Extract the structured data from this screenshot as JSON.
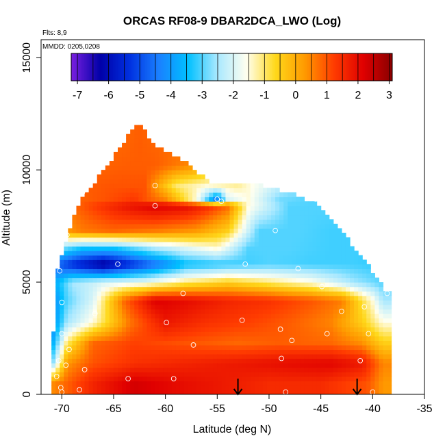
{
  "chart_data": {
    "type": "heatmap",
    "title": "ORCAS RF08-9 DBAR2DCA_LWO (Log)",
    "flights_label": "Flts: 8,9",
    "dates_label": "MMDD: 0205,0208",
    "xlabel": "Latitude (deg N)",
    "ylabel": "Altitude (m)",
    "xlim": [
      -72,
      -35
    ],
    "ylim": [
      0,
      15800
    ],
    "x_ticks": [
      -70,
      -65,
      -60,
      -55,
      -50,
      -45,
      -40,
      -35
    ],
    "y_ticks": [
      0,
      5000,
      10000,
      15000
    ],
    "colorbar": {
      "range": [
        -7.2,
        3.1
      ],
      "ticks": [
        -7,
        -6,
        -5,
        -4,
        -3,
        -2,
        -1,
        0,
        1,
        2,
        3
      ],
      "colors": [
        "#7a1fe0",
        "#0000a8",
        "#0030e0",
        "#1a80ff",
        "#00c0ff",
        "#a8e8ff",
        "#fffff0",
        "#ffd81a",
        "#ff9a00",
        "#ff3c00",
        "#e00000",
        "#8a0000"
      ]
    },
    "envelope_top": [
      [
        -71.0,
        1000
      ],
      [
        -70.5,
        5500
      ],
      [
        -69.5,
        7000
      ],
      [
        -68.5,
        8400
      ],
      [
        -67.2,
        9200
      ],
      [
        -66.0,
        10000
      ],
      [
        -64.5,
        10900
      ],
      [
        -63.0,
        11900
      ],
      [
        -62.3,
        11900
      ],
      [
        -61.0,
        11100
      ],
      [
        -58.5,
        10500
      ],
      [
        -55.5,
        9400
      ],
      [
        -53.5,
        9300
      ],
      [
        -50.5,
        9300
      ],
      [
        -48.0,
        9000
      ],
      [
        -45.5,
        8500
      ],
      [
        -43.0,
        7300
      ],
      [
        -41.0,
        6100
      ],
      [
        -39.0,
        4800
      ],
      [
        -38.5,
        4500
      ]
    ],
    "envelope_bottom": [
      [
        -71.0,
        0
      ],
      [
        -38.5,
        0
      ]
    ],
    "layers": [
      {
        "altitude_m": 500,
        "values": [
          [
            -71,
            0.4
          ],
          [
            -69,
            1.0
          ],
          [
            -67,
            1.6
          ],
          [
            -63,
            2.3
          ],
          [
            -59,
            2.0
          ],
          [
            -55,
            1.8
          ],
          [
            -50,
            1.5
          ],
          [
            -45,
            1.5
          ],
          [
            -40.5,
            1.0
          ],
          [
            -39,
            0.3
          ]
        ]
      },
      {
        "altitude_m": 1400,
        "values": [
          [
            -71,
            -3.0
          ],
          [
            -69.5,
            0.3
          ],
          [
            -67,
            1.0
          ],
          [
            -63,
            1.4
          ],
          [
            -58,
            1.6
          ],
          [
            -53,
            1.8
          ],
          [
            -48,
            2.0
          ],
          [
            -44,
            2.1
          ],
          [
            -41,
            1.8
          ],
          [
            -39,
            0.5
          ]
        ]
      },
      {
        "altitude_m": 2300,
        "values": [
          [
            -71,
            -4.0
          ],
          [
            -69.5,
            -1.0
          ],
          [
            -67,
            0.8
          ],
          [
            -63,
            1.2
          ],
          [
            -58,
            1.0
          ],
          [
            -53,
            0.8
          ],
          [
            -49,
            0.9
          ],
          [
            -44,
            0.8
          ],
          [
            -41,
            0.4
          ],
          [
            -39,
            -0.5
          ]
        ]
      },
      {
        "altitude_m": 3200,
        "values": [
          [
            -71,
            -4.5
          ],
          [
            -69.5,
            -2.5
          ],
          [
            -67,
            -1.5
          ],
          [
            -63.5,
            0.6
          ],
          [
            -60,
            1.8
          ],
          [
            -56,
            1.4
          ],
          [
            -52,
            1.2
          ],
          [
            -48,
            0.9
          ],
          [
            -44,
            0.5
          ],
          [
            -41,
            -0.5
          ],
          [
            -39,
            -1.5
          ]
        ]
      },
      {
        "altitude_m": 4200,
        "values": [
          [
            -71,
            -4.5
          ],
          [
            -69.5,
            -3.0
          ],
          [
            -67,
            -2.0
          ],
          [
            -64,
            0.8
          ],
          [
            -61,
            2.2
          ],
          [
            -58,
            2.0
          ],
          [
            -54,
            1.6
          ],
          [
            -50,
            1.4
          ],
          [
            -46,
            1.0
          ],
          [
            -43,
            0.6
          ],
          [
            -40,
            -1.5
          ],
          [
            -39,
            -2.5
          ]
        ]
      },
      {
        "altitude_m": 5000,
        "values": [
          [
            -71,
            -4.0
          ],
          [
            -69,
            -2.5
          ],
          [
            -66,
            -2.0
          ],
          [
            -62,
            -1.8
          ],
          [
            -58,
            -1.0
          ],
          [
            -54,
            -0.5
          ],
          [
            -50,
            -1.0
          ],
          [
            -46,
            -1.5
          ],
          [
            -42,
            -2.5
          ],
          [
            -39,
            -3.0
          ]
        ]
      },
      {
        "altitude_m": 5800,
        "values": [
          [
            -71,
            -4.5
          ],
          [
            -69,
            -5.5
          ],
          [
            -66,
            -6.5
          ],
          [
            -62,
            -5.0
          ],
          [
            -58,
            -3.5
          ],
          [
            -54,
            -3.2
          ],
          [
            -50,
            -3.0
          ],
          [
            -46,
            -3.1
          ],
          [
            -42,
            -3.1
          ],
          [
            -39,
            -3.2
          ]
        ]
      },
      {
        "altitude_m": 6500,
        "values": [
          [
            -71,
            -2.5
          ],
          [
            -68,
            -3.5
          ],
          [
            -65,
            -3.5
          ],
          [
            -61,
            -2.5
          ],
          [
            -58,
            -2.0
          ],
          [
            -55,
            -1.5
          ],
          [
            -52,
            -3.0
          ],
          [
            -48,
            -3.0
          ],
          [
            -44,
            -3.1
          ],
          [
            -41,
            -3.1
          ]
        ]
      },
      {
        "altitude_m": 7300,
        "values": [
          [
            -71,
            0.0
          ],
          [
            -68,
            0.6
          ],
          [
            -65,
            0.8
          ],
          [
            -61,
            0.6
          ],
          [
            -57,
            0.3
          ],
          [
            -54,
            -0.5
          ],
          [
            -51,
            -3.0
          ],
          [
            -47,
            -3.0
          ],
          [
            -44,
            -3.1
          ],
          [
            -42,
            -3.1
          ]
        ]
      },
      {
        "altitude_m": 8400,
        "values": [
          [
            -70,
            0.5
          ],
          [
            -67,
            1.2
          ],
          [
            -64,
            1.8
          ],
          [
            -61,
            2.2
          ],
          [
            -58,
            2.0
          ],
          [
            -56,
            1.5
          ],
          [
            -54,
            0.8
          ],
          [
            -52,
            -1.5
          ],
          [
            -48,
            -3.0
          ],
          [
            -45,
            -3.0
          ]
        ]
      },
      {
        "altitude_m": 8700,
        "values": [
          [
            -69,
            0.8
          ],
          [
            -66,
            1.0
          ],
          [
            -63,
            1.3
          ],
          [
            -60,
            0.5
          ],
          [
            -57,
            -1.5
          ],
          [
            -55,
            -4.5
          ],
          [
            -54,
            -2.0
          ],
          [
            -52,
            -1.5
          ],
          [
            -49,
            -2.8
          ],
          [
            -46,
            -3.0
          ]
        ]
      },
      {
        "altitude_m": 9300,
        "values": [
          [
            -68,
            0.9
          ],
          [
            -65,
            1.0
          ],
          [
            -62,
            1.0
          ],
          [
            -59,
            -1.0
          ],
          [
            -56,
            -1.5
          ],
          [
            -53,
            -1.2
          ],
          [
            -50,
            -2.0
          ],
          [
            -48,
            -2.5
          ]
        ]
      },
      {
        "altitude_m": 10200,
        "values": [
          [
            -67,
            0.8
          ],
          [
            -64,
            0.9
          ],
          [
            -61,
            0.9
          ],
          [
            -58,
            0.5
          ],
          [
            -55,
            0.0
          ]
        ]
      },
      {
        "altitude_m": 11500,
        "values": [
          [
            -64,
            0.8
          ],
          [
            -62.5,
            0.9
          ],
          [
            -61,
            0.8
          ]
        ]
      }
    ],
    "sample_points": [
      [
        -70.3,
        1500
      ],
      [
        -69.6,
        1300
      ],
      [
        -70.1,
        300
      ],
      [
        -70.0,
        100
      ],
      [
        -68.3,
        200
      ],
      [
        -67.8,
        1100
      ],
      [
        -69.3,
        2000
      ],
      [
        -70.0,
        2700
      ],
      [
        -70.0,
        4100
      ],
      [
        -70.2,
        5500
      ],
      [
        -66.8,
        3600
      ],
      [
        -68.0,
        9000
      ],
      [
        -69.5,
        7100
      ],
      [
        -64.6,
        5800
      ],
      [
        -63.6,
        700
      ],
      [
        -61.0,
        9300
      ],
      [
        -61.0,
        8400
      ],
      [
        -59.9,
        3200
      ],
      [
        -59.2,
        700
      ],
      [
        -58.3,
        4500
      ],
      [
        -57.3,
        2200
      ],
      [
        -55.0,
        8700
      ],
      [
        -54.6,
        8600
      ],
      [
        -52.3,
        5800
      ],
      [
        -52.6,
        3300
      ],
      [
        -49.4,
        7300
      ],
      [
        -48.9,
        2900
      ],
      [
        -48.8,
        1600
      ],
      [
        -47.8,
        2400
      ],
      [
        -47.2,
        5600
      ],
      [
        -45.5,
        8700
      ],
      [
        -44.9,
        4800
      ],
      [
        -44.4,
        2700
      ],
      [
        -43.0,
        3700
      ],
      [
        -41.2,
        1500
      ],
      [
        -40.8,
        3900
      ],
      [
        -40.4,
        2700
      ],
      [
        -38.6,
        4500
      ],
      [
        -48.4,
        100
      ],
      [
        -40.0,
        100
      ],
      [
        -70.5,
        800
      ]
    ],
    "markers": [
      {
        "type": "arrow-down",
        "x": -53.0,
        "y_from": 700,
        "y_to": 0
      },
      {
        "type": "arrow-down",
        "x": -41.5,
        "y_from": 700,
        "y_to": 0
      }
    ]
  }
}
